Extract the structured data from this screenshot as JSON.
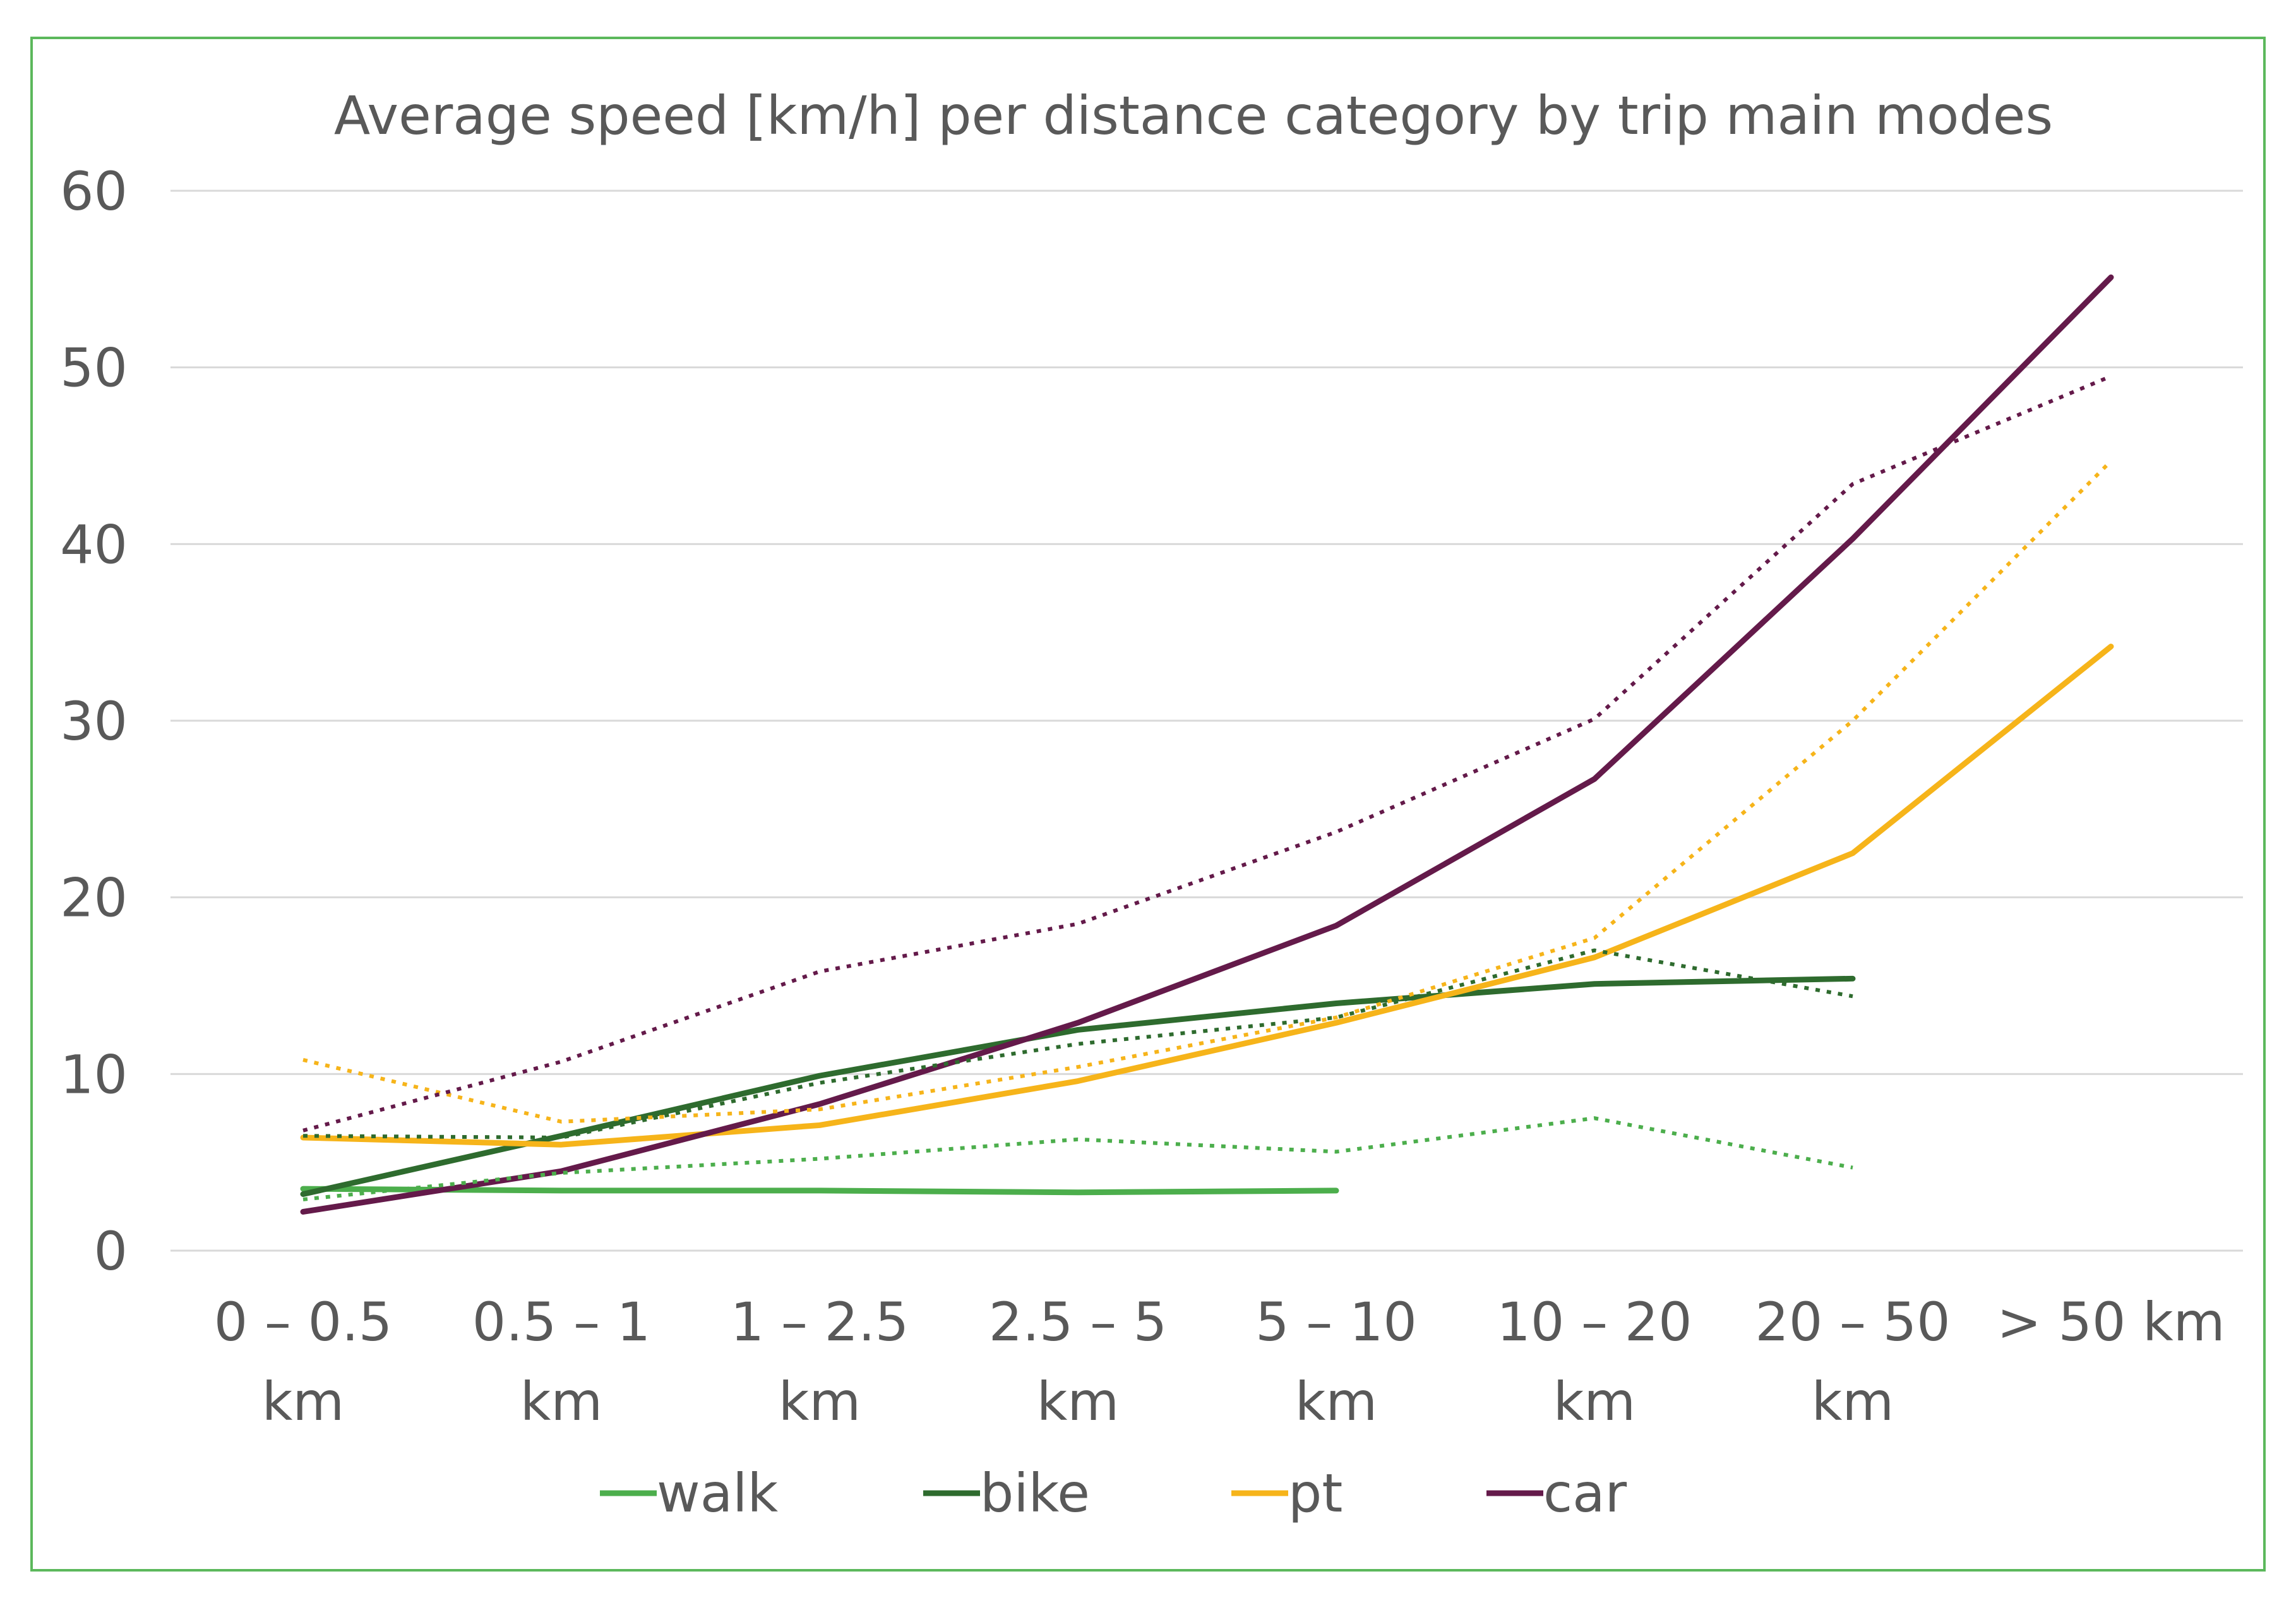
{
  "chart_data": {
    "type": "line",
    "title": "Average speed [km/h] per distance category by trip main modes",
    "xlabel": "",
    "ylabel": "",
    "ylim": [
      0,
      60
    ],
    "yticks": [
      "0",
      "10",
      "20",
      "30",
      "40",
      "50",
      "60"
    ],
    "grid": true,
    "legend_position": "bottom",
    "categories": [
      [
        "0 – 0.5",
        "km"
      ],
      [
        "0.5 – 1",
        "km"
      ],
      [
        "1 – 2.5",
        "km"
      ],
      [
        "2.5 – 5",
        "km"
      ],
      [
        "5 – 10",
        "km"
      ],
      [
        "10 – 20",
        "km"
      ],
      [
        "20 – 50",
        "km"
      ],
      [
        "> 50 km",
        ""
      ]
    ],
    "legend": [
      {
        "name": "walk",
        "color": "#4cae4c"
      },
      {
        "name": "bike",
        "color": "#2e6b2e"
      },
      {
        "name": "pt",
        "color": "#f6b41a"
      },
      {
        "name": "car",
        "color": "#641a4a"
      }
    ],
    "series": [
      {
        "name": "walk",
        "style": "solid",
        "color": "#4cae4c",
        "values": [
          3.5,
          3.4,
          3.4,
          3.3,
          3.4,
          null,
          null,
          null
        ]
      },
      {
        "name": "bike",
        "style": "solid",
        "color": "#2e6b2e",
        "values": [
          3.2,
          6.5,
          9.9,
          12.5,
          14.0,
          15.1,
          15.4,
          null
        ]
      },
      {
        "name": "pt",
        "style": "solid",
        "color": "#f6b41a",
        "values": [
          6.4,
          6.0,
          7.1,
          9.6,
          12.9,
          16.6,
          22.5,
          34.2
        ]
      },
      {
        "name": "car",
        "style": "solid",
        "color": "#641a4a",
        "values": [
          2.2,
          4.5,
          8.3,
          12.9,
          18.4,
          26.7,
          40.3,
          55.1
        ]
      },
      {
        "name": "walk",
        "style": "dotted",
        "color": "#4cae4c",
        "values": [
          2.9,
          4.4,
          5.2,
          6.3,
          5.6,
          7.5,
          4.7,
          null
        ]
      },
      {
        "name": "bike",
        "style": "dotted",
        "color": "#2e6b2e",
        "values": [
          6.5,
          6.4,
          9.5,
          11.7,
          13.2,
          17.0,
          14.4,
          null
        ]
      },
      {
        "name": "pt",
        "style": "dotted",
        "color": "#f6b41a",
        "values": [
          10.8,
          7.3,
          8.0,
          10.4,
          13.2,
          17.7,
          30.0,
          44.7
        ]
      },
      {
        "name": "car",
        "style": "dotted",
        "color": "#641a4a",
        "values": [
          6.8,
          10.7,
          15.8,
          18.5,
          23.7,
          30.1,
          43.4,
          49.5
        ]
      }
    ]
  }
}
